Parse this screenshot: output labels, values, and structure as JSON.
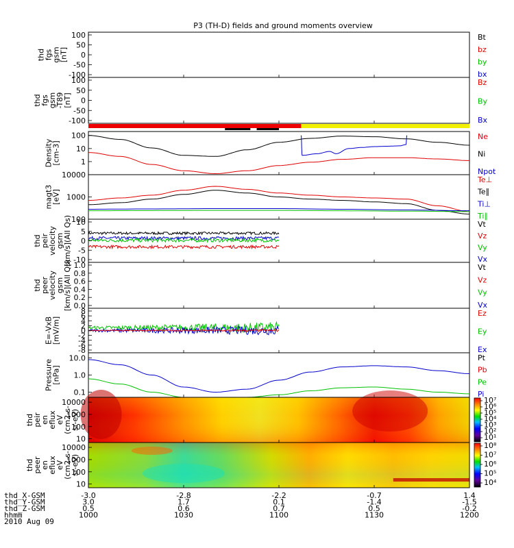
{
  "title": "P3 (TH-D) fields and ground moments overview",
  "colors": {
    "black": "#000000",
    "red": "#e00000",
    "green": "#00c000",
    "blue": "#0000cc",
    "yellow": "#f0f000",
    "bar_red": "#ee0000"
  },
  "chart_data": [
    {
      "type": "line",
      "id": "fgs",
      "ylabel": [
        "thd",
        "fgs",
        "gsm",
        "[nT]"
      ],
      "ylim": [
        -100,
        100
      ],
      "yticks": [
        "100",
        "50",
        "0",
        "-50",
        "-100"
      ],
      "legend": [
        {
          "label": "Bt",
          "color": "black"
        },
        {
          "label": "bz",
          "color": "red"
        },
        {
          "label": "by",
          "color": "green"
        },
        {
          "label": "bx",
          "color": "blue"
        }
      ],
      "series": []
    },
    {
      "type": "line",
      "id": "fgs_dif",
      "ylabel": [
        "thd",
        "fgs",
        "gsm",
        "-T89",
        "[nT]"
      ],
      "ylim": [
        -100,
        100
      ],
      "yticks": [
        "100",
        "50",
        "0",
        "-50",
        "-100"
      ],
      "legend": [
        {
          "label": "Bz",
          "color": "red"
        },
        {
          "label": "By",
          "color": "green"
        },
        {
          "label": "Bx",
          "color": "blue"
        }
      ],
      "series": []
    },
    {
      "type": "bar",
      "id": "mode_bar",
      "segments": [
        {
          "start_min": 0,
          "end_min": 67,
          "color": "bar_red"
        },
        {
          "start_min": 67,
          "end_min": 120,
          "color": "yellow"
        }
      ],
      "sub_segments": [
        {
          "start_min": 43,
          "end_min": 51,
          "color": "black"
        },
        {
          "start_min": 53,
          "end_min": 60,
          "color": "black"
        }
      ]
    },
    {
      "type": "line",
      "id": "density",
      "scale": "log",
      "ylabel": [
        "Density",
        "[cm-3]"
      ],
      "ylim": [
        0.1,
        200
      ],
      "yticks": [
        {
          "v": 100,
          "t": "100"
        },
        {
          "v": 10,
          "t": "10"
        },
        {
          "v": 1,
          "t": "1"
        }
      ],
      "legend": [
        {
          "label": "Ne",
          "color": "red"
        },
        {
          "label": "Ni",
          "color": "black"
        },
        {
          "label": "Npot",
          "color": "blue"
        }
      ],
      "series": [
        {
          "name": "Ni",
          "color": "black",
          "x": [
            0,
            10,
            20,
            30,
            40,
            50,
            60,
            70,
            80,
            90,
            100,
            110,
            120
          ],
          "y": [
            100,
            50,
            11,
            3,
            2.5,
            8,
            30,
            60,
            90,
            80,
            55,
            30,
            18
          ]
        },
        {
          "name": "Ne",
          "color": "red",
          "x": [
            0,
            10,
            20,
            30,
            40,
            50,
            60,
            70,
            80,
            90,
            100,
            110,
            120
          ],
          "y": [
            5,
            2.5,
            0.6,
            0.2,
            0.12,
            0.2,
            0.5,
            0.9,
            1.5,
            2,
            2,
            1.6,
            1.2
          ]
        },
        {
          "name": "Npot",
          "color": "blue",
          "x": [
            67,
            67.3,
            72,
            76,
            78,
            82,
            86,
            90,
            94,
            98,
            100,
            100.3
          ],
          "y": [
            100,
            3,
            4,
            6,
            4,
            10,
            12,
            14,
            15,
            16,
            20,
            100
          ]
        }
      ]
    },
    {
      "type": "line",
      "id": "mag",
      "scale": "log",
      "ylabel": [
        "magt3",
        "[eV]"
      ],
      "ylim": [
        100,
        10000
      ],
      "yticks": [
        {
          "v": 10000,
          "t": "10000"
        },
        {
          "v": 1000,
          "t": "1000"
        },
        {
          "v": 100,
          "t": "100"
        }
      ],
      "legend": [
        {
          "label": "Te⊥",
          "color": "red"
        },
        {
          "label": "Te∥",
          "color": "black"
        },
        {
          "label": "Ti⊥",
          "color": "blue"
        },
        {
          "label": "Ti∥",
          "color": "green"
        }
      ],
      "series": [
        {
          "name": "Te_perp",
          "color": "red",
          "x": [
            0,
            10,
            20,
            30,
            40,
            50,
            60,
            70,
            80,
            90,
            100,
            110,
            120
          ],
          "y": [
            700,
            900,
            1200,
            2000,
            3000,
            2200,
            1500,
            1200,
            1000,
            900,
            800,
            400,
            220
          ]
        },
        {
          "name": "Te_par",
          "color": "black",
          "x": [
            0,
            10,
            20,
            30,
            40,
            50,
            60,
            70,
            80,
            90,
            100,
            110,
            120
          ],
          "y": [
            450,
            550,
            800,
            1300,
            2000,
            1500,
            1000,
            800,
            700,
            600,
            500,
            250,
            170
          ]
        },
        {
          "name": "Ti_perp",
          "color": "blue",
          "x": [
            0,
            20,
            40,
            60,
            80,
            100,
            120
          ],
          "y": [
            280,
            290,
            300,
            300,
            280,
            260,
            240
          ]
        },
        {
          "name": "Ti_par",
          "color": "green",
          "x": [
            0,
            20,
            40,
            60,
            80,
            100,
            120
          ],
          "y": [
            240,
            245,
            250,
            250,
            240,
            230,
            220
          ]
        }
      ]
    },
    {
      "type": "line",
      "id": "peir_vel",
      "ylabel": [
        "thd",
        "peir",
        "velocity",
        "gsm",
        "[km/s](All Qs)"
      ],
      "ylim": [
        -10,
        10
      ],
      "yticks": [
        "10",
        "5",
        "0",
        "-5",
        "-10"
      ],
      "legend": [
        {
          "label": "Vt",
          "color": "black"
        },
        {
          "label": "Vz",
          "color": "red"
        },
        {
          "label": "Vy",
          "color": "green"
        },
        {
          "label": "Vx",
          "color": "blue"
        }
      ],
      "series": [
        {
          "name": "Vt",
          "color": "black",
          "x_range": [
            0,
            60
          ],
          "base": 3.5,
          "noise": 1.2
        },
        {
          "name": "Vx",
          "color": "blue",
          "x_range": [
            0,
            60
          ],
          "base": 1.2,
          "noise": 1.5
        },
        {
          "name": "Vy",
          "color": "green",
          "x_range": [
            0,
            60
          ],
          "base": 0.2,
          "noise": 1.6
        },
        {
          "name": "Vz",
          "color": "red",
          "x_range": [
            0,
            60
          ],
          "base": -2.8,
          "noise": 1.4
        }
      ]
    },
    {
      "type": "line",
      "id": "peer_vel",
      "ylabel": [
        "thd",
        "peer",
        "velocity",
        "gsm",
        "[km/s](All Qs)"
      ],
      "ylim": [
        0,
        1
      ],
      "yticks": [
        "1.0",
        "0.8",
        "0.6",
        "0.4",
        "0.2",
        "0.0"
      ],
      "legend": [
        {
          "label": "Vt",
          "color": "black"
        },
        {
          "label": "Vz",
          "color": "red"
        },
        {
          "label": "Vy",
          "color": "green"
        },
        {
          "label": "Vx",
          "color": "blue"
        }
      ],
      "series": []
    },
    {
      "type": "line",
      "id": "efield",
      "ylabel": [
        "E=-VxB",
        "[mV/m]"
      ],
      "ylim": [
        -8,
        8
      ],
      "yticks": [
        "8",
        "6",
        "4",
        "2",
        "0",
        "-2",
        "-4",
        "-6",
        "-8"
      ],
      "legend": [
        {
          "label": "Ez",
          "color": "red"
        },
        {
          "label": "Ey",
          "color": "green"
        },
        {
          "label": "Ex",
          "color": "blue"
        }
      ],
      "series": [
        {
          "name": "Ey",
          "color": "green",
          "x_range": [
            0,
            60
          ],
          "base": 1.0,
          "noise": 3.0
        },
        {
          "name": "Ex",
          "color": "blue",
          "x_range": [
            0,
            60
          ],
          "base": 0.0,
          "noise": 2.5
        },
        {
          "name": "Ez",
          "color": "red",
          "x_range": [
            0,
            60
          ],
          "base": 0.0,
          "noise": 0.6
        }
      ]
    },
    {
      "type": "line",
      "id": "pressure",
      "scale": "log",
      "ylabel": [
        "Pressure",
        "[nPa]"
      ],
      "ylim": [
        0.05,
        20
      ],
      "yticks": [
        {
          "v": 10,
          "t": "10.0"
        },
        {
          "v": 1,
          "t": "1.0"
        },
        {
          "v": 0.1,
          "t": "0.1"
        }
      ],
      "legend": [
        {
          "label": "Pt",
          "color": "black"
        },
        {
          "label": "Pb",
          "color": "red"
        },
        {
          "label": "Pe",
          "color": "green"
        },
        {
          "label": "Pi",
          "color": "blue"
        }
      ],
      "series": [
        {
          "name": "Pi",
          "color": "blue",
          "x": [
            0,
            10,
            20,
            30,
            40,
            50,
            60,
            70,
            80,
            90,
            100,
            110,
            120
          ],
          "y": [
            8,
            4,
            1,
            0.2,
            0.1,
            0.15,
            0.5,
            1.5,
            3,
            3.5,
            3,
            1.8,
            1.2
          ]
        },
        {
          "name": "Pe",
          "color": "green",
          "x": [
            0,
            10,
            20,
            30,
            40,
            50,
            60,
            70,
            80,
            90,
            100,
            110,
            120
          ],
          "y": [
            0.6,
            0.3,
            0.1,
            0.05,
            0.05,
            0.05,
            0.07,
            0.12,
            0.18,
            0.2,
            0.15,
            0.1,
            0.08
          ]
        }
      ]
    },
    {
      "type": "heatmap",
      "id": "peir_en",
      "ylabel": [
        "thd",
        "peir",
        "en",
        "eflux",
        "eV",
        "(cm2-s-",
        "sr-eV)"
      ],
      "yticks": [
        {
          "v": 10000,
          "t": "10000"
        },
        {
          "v": 1000,
          "t": "1000"
        },
        {
          "v": 100,
          "t": "100"
        },
        {
          "v": 10,
          "t": "10"
        }
      ],
      "ylim": [
        5,
        25000
      ],
      "colorbar_ticks": [
        "10⁷",
        "10⁶",
        "10⁵",
        "10⁴",
        "10³",
        "10²",
        "10¹"
      ]
    },
    {
      "type": "heatmap",
      "id": "peer_en",
      "ylabel": [
        "thd",
        "peer",
        "en",
        "eflux",
        "eV",
        "(cm2-s-",
        "sr-eV)"
      ],
      "yticks": [
        {
          "v": 10000,
          "t": "10000"
        },
        {
          "v": 1000,
          "t": "1000"
        },
        {
          "v": 100,
          "t": "100"
        },
        {
          "v": 10,
          "t": "10"
        }
      ],
      "ylim": [
        5,
        25000
      ],
      "colorbar_ticks": [
        "10⁸",
        "10⁷",
        "10⁶",
        "10⁵",
        "10⁴"
      ]
    }
  ],
  "xaxis": {
    "row_labels": [
      "thd_X-GSM",
      "thd_Y-GSM",
      "thd_Z-GSM",
      "hhmm",
      "2010 Aug 09"
    ],
    "columns": [
      {
        "min": 0,
        "values": [
          "-3.0",
          "3.0",
          "0.5",
          "1000"
        ]
      },
      {
        "min": 30,
        "values": [
          "-2.8",
          "1.7",
          "0.6",
          "1030"
        ]
      },
      {
        "min": 60,
        "values": [
          "-2.2",
          "0.1",
          "0.7",
          "1100"
        ]
      },
      {
        "min": 90,
        "values": [
          "-0.7",
          "-1.4",
          "0.5",
          "1130"
        ]
      },
      {
        "min": 120,
        "values": [
          "1.4",
          "-1.5",
          "-0.2",
          "1200"
        ]
      }
    ]
  }
}
